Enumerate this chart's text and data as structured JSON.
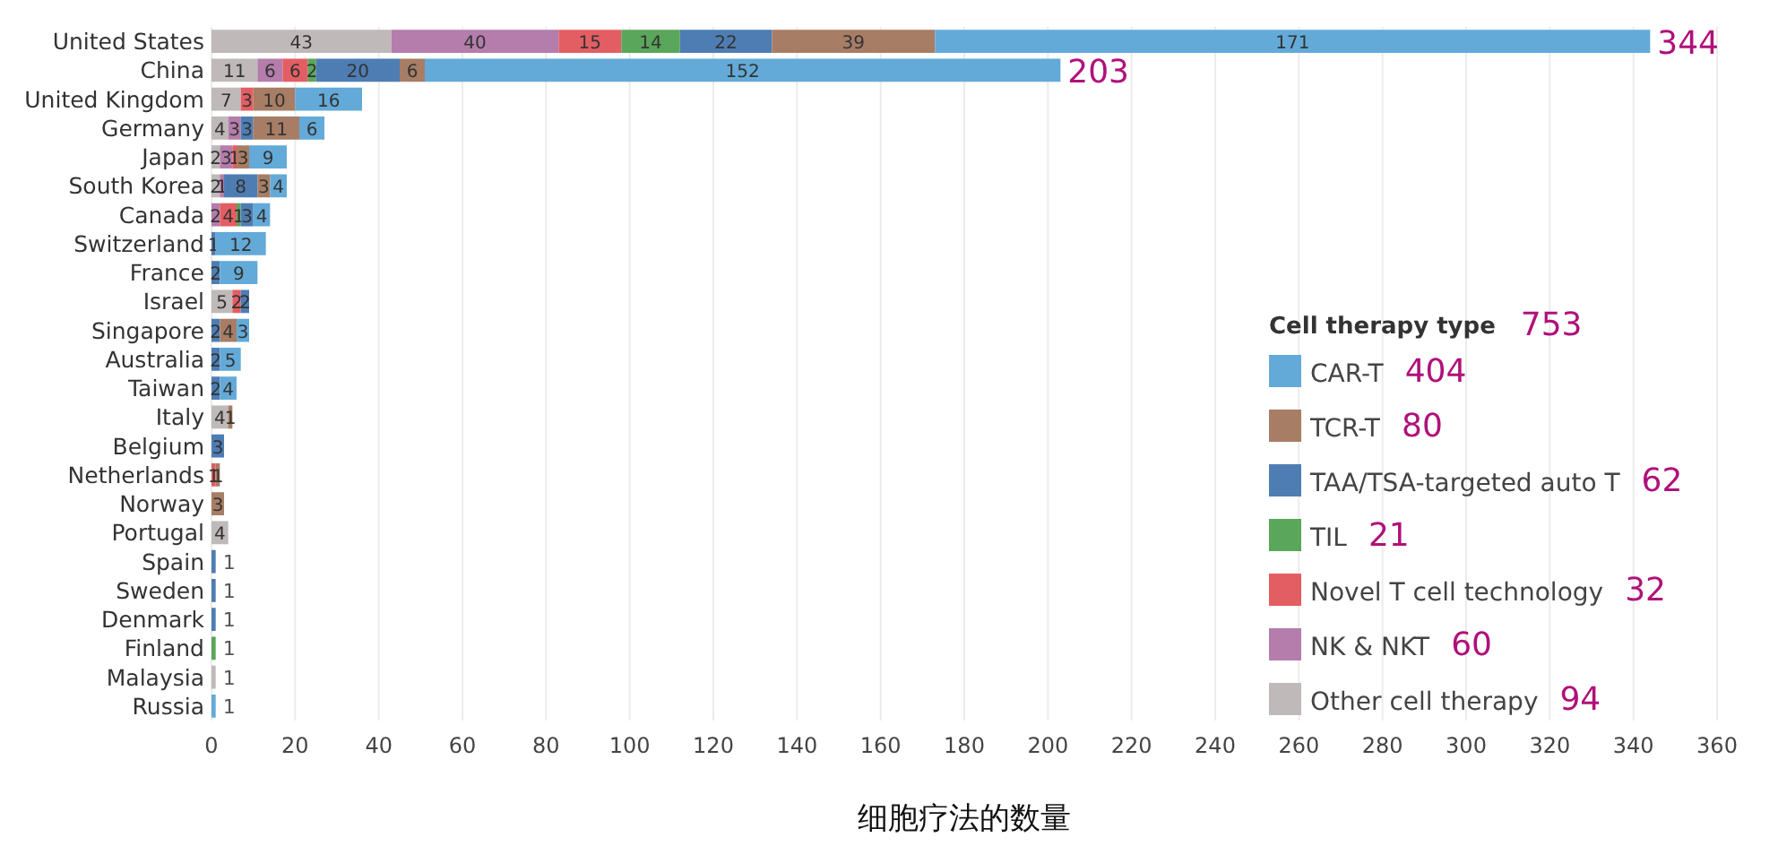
{
  "chart_data": {
    "type": "bar",
    "orientation": "horizontal",
    "stacked": true,
    "xlabel": "细胞疗法的数量",
    "legend_title": "Cell therapy type",
    "legend": "bottom right",
    "grid": "x",
    "data_labels": true,
    "categories": [
      "United States",
      "China",
      "United Kingdom",
      "Germany",
      "Japan",
      "South Korea",
      "Canada",
      "Switzerland",
      "France",
      "Israel",
      "Singapore",
      "Australia",
      "Taiwan",
      "Italy",
      "Belgium",
      "Netherlands",
      "Norway",
      "Portugal",
      "Spain",
      "Sweden",
      "Denmark",
      "Finland",
      "Malaysia",
      "Russia"
    ],
    "xlim": [
      0,
      360
    ],
    "xticks": [
      0,
      20,
      40,
      60,
      80,
      100,
      120,
      140,
      160,
      180,
      200,
      220,
      240,
      260,
      280,
      300,
      320,
      340,
      360
    ],
    "series": [
      {
        "name": "Other cell therapy",
        "color": "#bfb9b9",
        "values": [
          43,
          11,
          7,
          4,
          2,
          2,
          null,
          null,
          null,
          5,
          null,
          null,
          null,
          4,
          null,
          null,
          null,
          4,
          null,
          null,
          null,
          null,
          1,
          null
        ]
      },
      {
        "name": "NK & NKT",
        "color": "#b47dab",
        "values": [
          40,
          6,
          null,
          3,
          3,
          1,
          2,
          null,
          null,
          null,
          null,
          null,
          null,
          null,
          null,
          null,
          null,
          null,
          null,
          null,
          null,
          null,
          null,
          null
        ]
      },
      {
        "name": "Novel T cell technology",
        "color": "#e35e63",
        "values": [
          15,
          6,
          3,
          null,
          1,
          null,
          4,
          null,
          null,
          2,
          null,
          null,
          null,
          null,
          null,
          1,
          null,
          null,
          null,
          null,
          null,
          null,
          null,
          null
        ]
      },
      {
        "name": "TIL",
        "color": "#5aa65a",
        "values": [
          14,
          2,
          null,
          null,
          null,
          null,
          1,
          null,
          null,
          null,
          null,
          null,
          null,
          null,
          null,
          null,
          null,
          null,
          null,
          null,
          null,
          1,
          null,
          null
        ]
      },
      {
        "name": "TAA/TSA-targeted auto T",
        "color": "#4e7db3",
        "values": [
          22,
          20,
          null,
          3,
          null,
          8,
          3,
          1,
          2,
          2,
          2,
          2,
          2,
          null,
          3,
          null,
          null,
          null,
          1,
          1,
          1,
          null,
          null,
          null
        ]
      },
      {
        "name": "TCR-T",
        "color": "#a87d65",
        "values": [
          39,
          6,
          10,
          11,
          3,
          3,
          null,
          null,
          null,
          null,
          4,
          null,
          null,
          1,
          null,
          1,
          3,
          null,
          null,
          null,
          null,
          null,
          null,
          null
        ]
      },
      {
        "name": "CAR-T",
        "color": "#63aad8",
        "values": [
          171,
          152,
          16,
          6,
          9,
          4,
          4,
          12,
          9,
          null,
          3,
          5,
          4,
          null,
          null,
          null,
          null,
          null,
          null,
          null,
          null,
          null,
          null,
          1
        ]
      }
    ],
    "totals": [
      "344",
      "203",
      null,
      null,
      null,
      null,
      null,
      null,
      null,
      null,
      null,
      null,
      null,
      null,
      null,
      null,
      null,
      null,
      null,
      null,
      null,
      null,
      null,
      null
    ],
    "annotations": [
      "753",
      "404",
      "80",
      "62",
      "21",
      "32",
      "60",
      "94"
    ]
  }
}
